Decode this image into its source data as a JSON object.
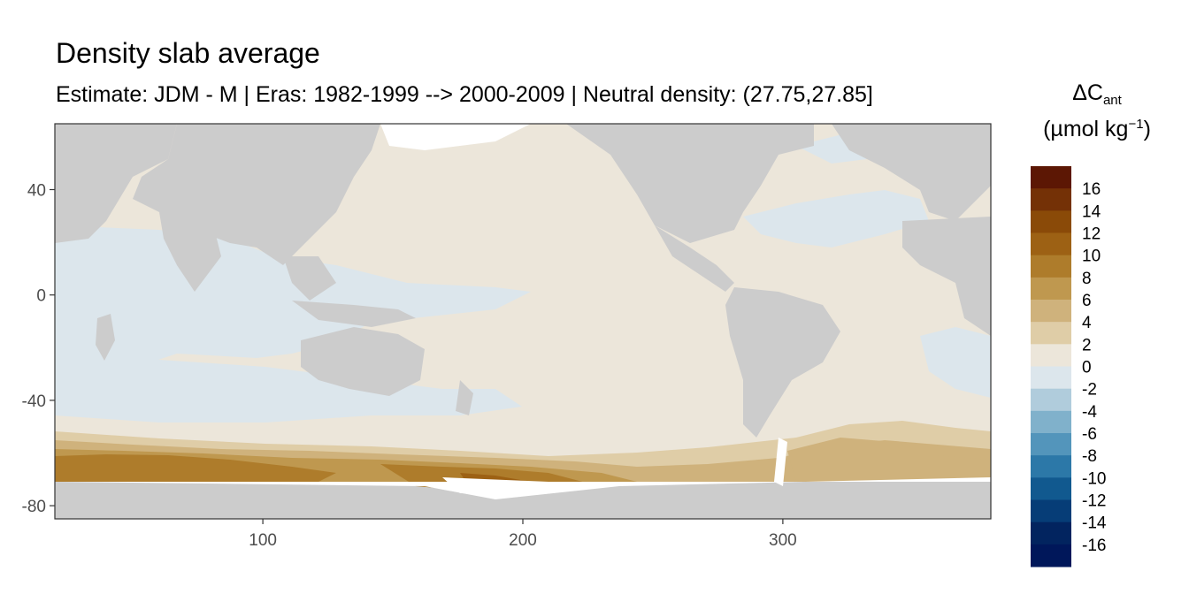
{
  "title": "Density slab average",
  "subtitle": "Estimate: JDM - M | Eras: 1982-1999 --> 2000-2009 | Neutral density: (27.75,27.85]",
  "legend": {
    "title_main": "ΔC",
    "title_sub": "ant",
    "title_unit_open": "(µmol kg",
    "title_unit_sup": "−1",
    "title_unit_close": ")",
    "labels": [
      "16",
      "14",
      "12",
      "10",
      "8",
      "6",
      "4",
      "2",
      "0",
      "-2",
      "-4",
      "-6",
      "-8",
      "-10",
      "-12",
      "-14",
      "-16"
    ],
    "colors": [
      "#5c1704",
      "#743106",
      "#8a4a08",
      "#9d6114",
      "#ae7c2b",
      "#bf984f",
      "#cfb27c",
      "#dfcda7",
      "#ece6da",
      "#dce6ec",
      "#b0ccdc",
      "#80b1cb",
      "#5395bb",
      "#2c78a8",
      "#11598f",
      "#063d77",
      "#02245f",
      "#00175a"
    ]
  },
  "chart_data": {
    "type": "heatmap",
    "title": "Density slab average",
    "subtitle": "Estimate: JDM - M | Eras: 1982-1999 --> 2000-2009 | Neutral density: (27.75,27.85]",
    "xlabel": "",
    "ylabel": "",
    "xlim": [
      20,
      380
    ],
    "ylim": [
      -85,
      65
    ],
    "x_ticks": [
      100,
      200,
      300
    ],
    "y_ticks": [
      40,
      0,
      -40,
      -80
    ],
    "variable": "ΔC_ant",
    "unit": "µmol kg−1",
    "color_range": [
      -16,
      16
    ],
    "grid": false,
    "legend_position": "right",
    "land_color": "#cccccc",
    "regions_approx_value": [
      {
        "region": "North Pacific",
        "value": 1
      },
      {
        "region": "North Atlantic",
        "value": -1
      },
      {
        "region": "Indian Ocean",
        "value": -1
      },
      {
        "region": "Equatorial West Pacific",
        "value": -1
      },
      {
        "region": "South Pacific",
        "value": 1
      },
      {
        "region": "Southern Ocean (Ross Sea)",
        "value": 11
      },
      {
        "region": "Southern Ocean (Indian sector)",
        "value": 9
      }
    ]
  }
}
